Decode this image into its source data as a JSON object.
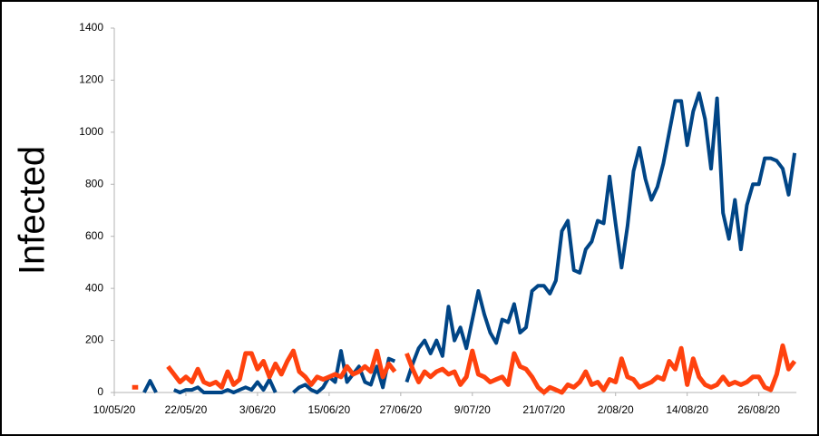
{
  "chart_data": {
    "type": "line",
    "y_label": "Infected",
    "x": [
      "10/05/20",
      "11/05/20",
      "12/05/20",
      "13/05/20",
      "14/05/20",
      "15/05/20",
      "16/05/20",
      "17/05/20",
      "18/05/20",
      "19/05/20",
      "20/05/20",
      "21/05/20",
      "22/05/20",
      "23/05/20",
      "24/05/20",
      "25/05/20",
      "26/05/20",
      "27/05/20",
      "28/05/20",
      "29/05/20",
      "30/05/20",
      "31/05/20",
      "1/06/20",
      "2/06/20",
      "3/06/20",
      "4/06/20",
      "5/06/20",
      "6/06/20",
      "7/06/20",
      "8/06/20",
      "9/06/20",
      "10/06/20",
      "11/06/20",
      "12/06/20",
      "13/06/20",
      "14/06/20",
      "15/06/20",
      "16/06/20",
      "17/06/20",
      "18/06/20",
      "19/06/20",
      "20/06/20",
      "21/06/20",
      "22/06/20",
      "23/06/20",
      "24/06/20",
      "25/06/20",
      "26/06/20",
      "27/06/20",
      "28/06/20",
      "29/06/20",
      "30/06/20",
      "1/07/20",
      "2/07/20",
      "3/07/20",
      "4/07/20",
      "5/07/20",
      "6/07/20",
      "7/07/20",
      "8/07/20",
      "9/07/20",
      "10/07/20",
      "11/07/20",
      "12/07/20",
      "13/07/20",
      "14/07/20",
      "15/07/20",
      "16/07/20",
      "17/07/20",
      "18/07/20",
      "19/07/20",
      "20/07/20",
      "21/07/20",
      "22/07/20",
      "23/07/20",
      "24/07/20",
      "25/07/20",
      "26/07/20",
      "27/07/20",
      "28/07/20",
      "29/07/20",
      "30/07/20",
      "31/07/20",
      "1/08/20",
      "2/08/20",
      "3/08/20",
      "4/08/20",
      "5/08/20",
      "6/08/20",
      "7/08/20",
      "8/08/20",
      "9/08/20",
      "10/08/20",
      "11/08/20",
      "12/08/20",
      "13/08/20",
      "14/08/20",
      "15/08/20",
      "16/08/20",
      "17/08/20",
      "18/08/20",
      "19/08/20",
      "20/08/20",
      "21/08/20",
      "22/08/20",
      "23/08/20",
      "24/08/20",
      "25/08/20",
      "26/08/20",
      "27/08/20",
      "28/08/20",
      "29/08/20",
      "30/08/20",
      "31/08/20",
      "1/09/20"
    ],
    "series": [
      {
        "color": "#004586",
        "values": [
          null,
          null,
          null,
          null,
          null,
          0,
          45,
          0,
          null,
          null,
          10,
          0,
          10,
          10,
          20,
          0,
          0,
          0,
          0,
          10,
          0,
          10,
          20,
          10,
          40,
          10,
          50,
          0,
          null,
          null,
          0,
          20,
          30,
          10,
          0,
          20,
          60,
          40,
          160,
          40,
          70,
          100,
          40,
          30,
          100,
          20,
          130,
          120,
          null,
          40,
          110,
          170,
          200,
          150,
          200,
          140,
          330,
          200,
          250,
          170,
          280,
          390,
          300,
          230,
          190,
          280,
          270,
          340,
          230,
          250,
          390,
          410,
          410,
          380,
          430,
          620,
          660,
          470,
          460,
          550,
          580,
          660,
          650,
          830,
          650,
          480,
          640,
          850,
          940,
          820,
          740,
          790,
          880,
          1000,
          1120,
          1120,
          950,
          1080,
          1150,
          1050,
          860,
          1130,
          690,
          590,
          740,
          550,
          720,
          800,
          800,
          900,
          900,
          890,
          860,
          760,
          920
        ]
      },
      {
        "color": "#ff420e",
        "values": [
          null,
          null,
          null,
          20,
          20,
          null,
          null,
          null,
          null,
          100,
          70,
          40,
          60,
          40,
          90,
          40,
          30,
          40,
          20,
          80,
          30,
          50,
          150,
          150,
          90,
          120,
          60,
          110,
          70,
          120,
          160,
          80,
          60,
          30,
          60,
          50,
          60,
          70,
          60,
          100,
          70,
          80,
          100,
          80,
          160,
          60,
          110,
          80,
          null,
          150,
          90,
          40,
          80,
          60,
          80,
          90,
          70,
          80,
          30,
          60,
          160,
          70,
          60,
          40,
          50,
          60,
          30,
          150,
          100,
          90,
          60,
          20,
          0,
          20,
          10,
          0,
          30,
          20,
          40,
          80,
          30,
          40,
          10,
          50,
          40,
          130,
          60,
          50,
          20,
          30,
          40,
          60,
          50,
          120,
          90,
          170,
          30,
          130,
          60,
          30,
          20,
          30,
          60,
          30,
          40,
          30,
          40,
          60,
          60,
          20,
          10,
          70,
          180,
          90,
          120
        ]
      }
    ],
    "xticks": [
      "10/05/20",
      "22/05/20",
      "3/06/20",
      "15/06/20",
      "27/06/20",
      "9/07/20",
      "21/07/20",
      "2/08/20",
      "14/08/20",
      "26/08/20"
    ],
    "ylim": [
      0,
      1400
    ],
    "yticks": [
      0,
      200,
      400,
      600,
      800,
      1000,
      1200,
      1400
    ],
    "grid": false
  }
}
